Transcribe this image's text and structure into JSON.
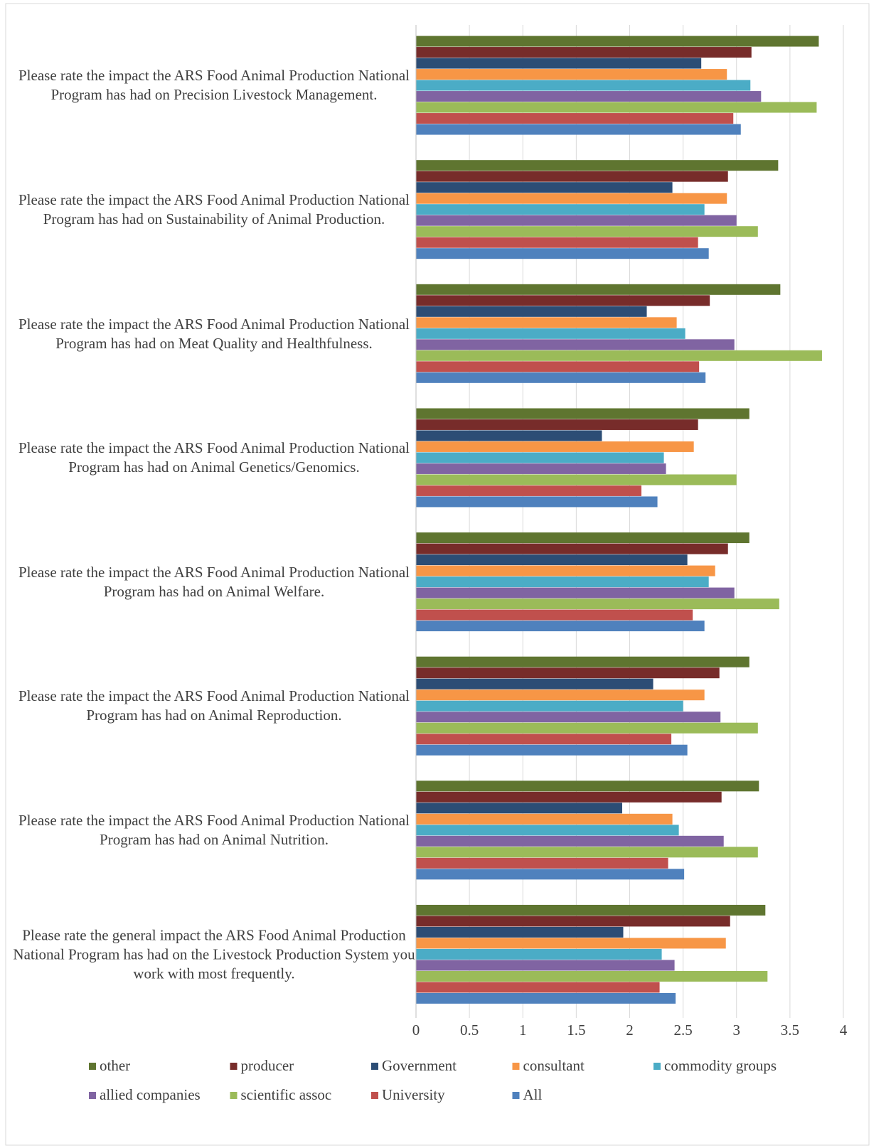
{
  "chart_data": {
    "type": "bar",
    "orientation": "horizontal",
    "categories": [
      "Please rate the impact the ARS Food Animal Production National Program has had on Precision Livestock Management.",
      "Please rate the impact the ARS Food Animal Production National Program has had on Sustainability of Animal Production.",
      "Please rate the impact the ARS Food Animal Production National Program has had on Meat Quality and Healthfulness.",
      "Please rate the impact the ARS Food Animal Production National Program has had on Animal Genetics/Genomics.",
      "Please rate the impact the ARS Food Animal Production National Program has had on Animal Welfare.",
      "Please rate the impact the ARS Food Animal Production National Program has had on Animal Reproduction.",
      "Please rate the impact the ARS Food Animal Production National Program has had on Animal Nutrition.",
      "Please rate the general impact the ARS Food Animal Production National Program has had on the Livestock Production System you work with most frequently."
    ],
    "series": [
      {
        "name": "other",
        "color": "#5f7530",
        "values": [
          3.77,
          3.39,
          3.41,
          3.12,
          3.12,
          3.12,
          3.21,
          3.27
        ]
      },
      {
        "name": "producer",
        "color": "#772c2a",
        "values": [
          3.14,
          2.92,
          2.75,
          2.64,
          2.92,
          2.84,
          2.86,
          2.94
        ]
      },
      {
        "name": "Government",
        "color": "#2c4d75",
        "values": [
          2.67,
          2.4,
          2.16,
          1.74,
          2.54,
          2.22,
          1.93,
          1.94
        ]
      },
      {
        "name": "consultant",
        "color": "#f79646",
        "values": [
          2.91,
          2.91,
          2.44,
          2.6,
          2.8,
          2.7,
          2.4,
          2.9
        ]
      },
      {
        "name": "commodity groups",
        "color": "#4bacc6",
        "values": [
          3.13,
          2.7,
          2.52,
          2.32,
          2.74,
          2.5,
          2.46,
          2.3
        ]
      },
      {
        "name": "allied companies",
        "color": "#8064a2",
        "values": [
          3.23,
          3.0,
          2.98,
          2.34,
          2.98,
          2.85,
          2.88,
          2.42
        ]
      },
      {
        "name": "scientific assoc",
        "color": "#9bbb59",
        "values": [
          3.75,
          3.2,
          3.8,
          3.0,
          3.4,
          3.2,
          3.2,
          3.29
        ]
      },
      {
        "name": "University",
        "color": "#c0504d",
        "values": [
          2.97,
          2.64,
          2.65,
          2.11,
          2.59,
          2.39,
          2.36,
          2.28
        ]
      },
      {
        "name": "All",
        "color": "#4f81bd",
        "values": [
          3.04,
          2.74,
          2.71,
          2.26,
          2.7,
          2.54,
          2.51,
          2.43
        ]
      }
    ],
    "xlim": [
      0,
      4
    ],
    "xticks": [
      0,
      0.5,
      1,
      1.5,
      2,
      2.5,
      3,
      3.5,
      4
    ],
    "grid": true,
    "legend": "bottom"
  }
}
